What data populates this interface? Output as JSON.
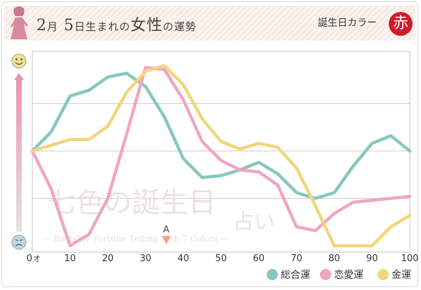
{
  "header": {
    "title_month_num": "2",
    "title_month_unit": "月",
    "title_day_num": "5",
    "title_rest_a": "日生まれの",
    "title_rest_b": "女性",
    "title_rest_c": "の運勢",
    "birth_color_label": "誕生日カラー",
    "birth_color_char": "赤"
  },
  "icons": {
    "top_face": "smiling-face-icon",
    "bottom_face": "worried-face-icon",
    "header_figure": "woman-silhouette-icon"
  },
  "colors": {
    "total": "#86c7bf",
    "love": "#f0a6c1",
    "money": "#f2d67a",
    "marker": "#f0a080"
  },
  "watermark": {
    "line1": "七色の誕生日",
    "line2": "占い",
    "line3": "— Birthday Fortune Telling with 7 Colors —"
  },
  "marker": {
    "label": "A",
    "age": 35.5
  },
  "legend": [
    {
      "key": "total",
      "label": "総合運"
    },
    {
      "key": "love",
      "label": "恋愛運"
    },
    {
      "key": "money",
      "label": "金運"
    }
  ],
  "chart_data": {
    "type": "line",
    "x_unit_label": "オ",
    "xlim": [
      0,
      100
    ],
    "ylim": [
      0,
      100
    ],
    "x_ticks": [
      0,
      10,
      20,
      30,
      40,
      50,
      60,
      70,
      80,
      90,
      100
    ],
    "grid": true,
    "series": [
      {
        "name": "総合運",
        "key": "total",
        "x": [
          0,
          5,
          10,
          15,
          20,
          25,
          30,
          35,
          40,
          45,
          50,
          55,
          60,
          65,
          70,
          75,
          80,
          85,
          90,
          95,
          100
        ],
        "values": [
          50,
          60,
          79,
          82,
          89,
          91,
          84,
          68,
          46,
          36,
          37,
          40,
          44,
          38,
          28,
          25,
          28,
          42,
          54,
          58,
          50
        ]
      },
      {
        "name": "恋愛運",
        "key": "love",
        "x": [
          0,
          5,
          10,
          15,
          20,
          25,
          30,
          35,
          40,
          45,
          50,
          55,
          60,
          65,
          70,
          75,
          80,
          85,
          90,
          95,
          100
        ],
        "values": [
          50,
          30,
          0,
          6,
          25,
          59,
          94,
          93,
          77,
          55,
          45,
          40,
          39,
          32,
          10,
          8,
          17,
          23,
          24,
          25,
          26
        ]
      },
      {
        "name": "金運",
        "key": "money",
        "x": [
          0,
          5,
          10,
          15,
          20,
          25,
          30,
          35,
          40,
          45,
          50,
          55,
          60,
          65,
          70,
          75,
          80,
          85,
          90,
          95,
          100
        ],
        "values": [
          50,
          53,
          56,
          56,
          63,
          81,
          92,
          95,
          85,
          67,
          55,
          51,
          54,
          52,
          41,
          21,
          0,
          0,
          0,
          10,
          16
        ]
      }
    ]
  }
}
